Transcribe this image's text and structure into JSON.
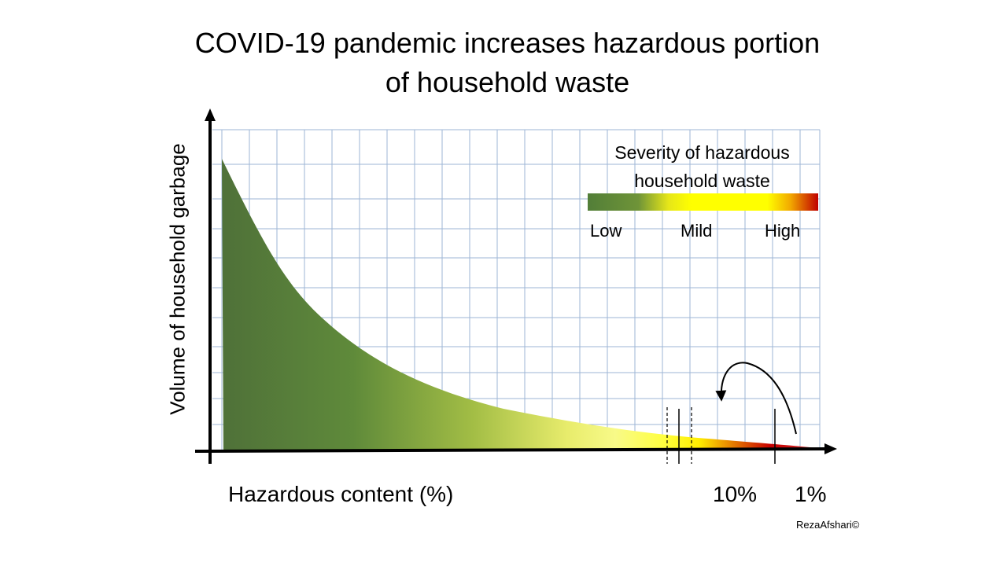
{
  "title": {
    "line1": "COVID-19 pandemic increases hazardous portion",
    "line2": "of household waste"
  },
  "axes": {
    "ylabel": "Volume of household garbage",
    "xlabel": "Hazardous content (%)",
    "tick_10": "10%",
    "tick_1": "1%"
  },
  "legend": {
    "title_line1": "Severity of hazardous",
    "title_line2": "household  waste",
    "low": "Low",
    "mild": "Mild",
    "high": "High",
    "colors": [
      "#4f7d3a",
      "#7fa23a",
      "#e6e61a",
      "#ffff00",
      "#f4b000",
      "#c00000"
    ]
  },
  "credit": "RezaAfshari©"
}
